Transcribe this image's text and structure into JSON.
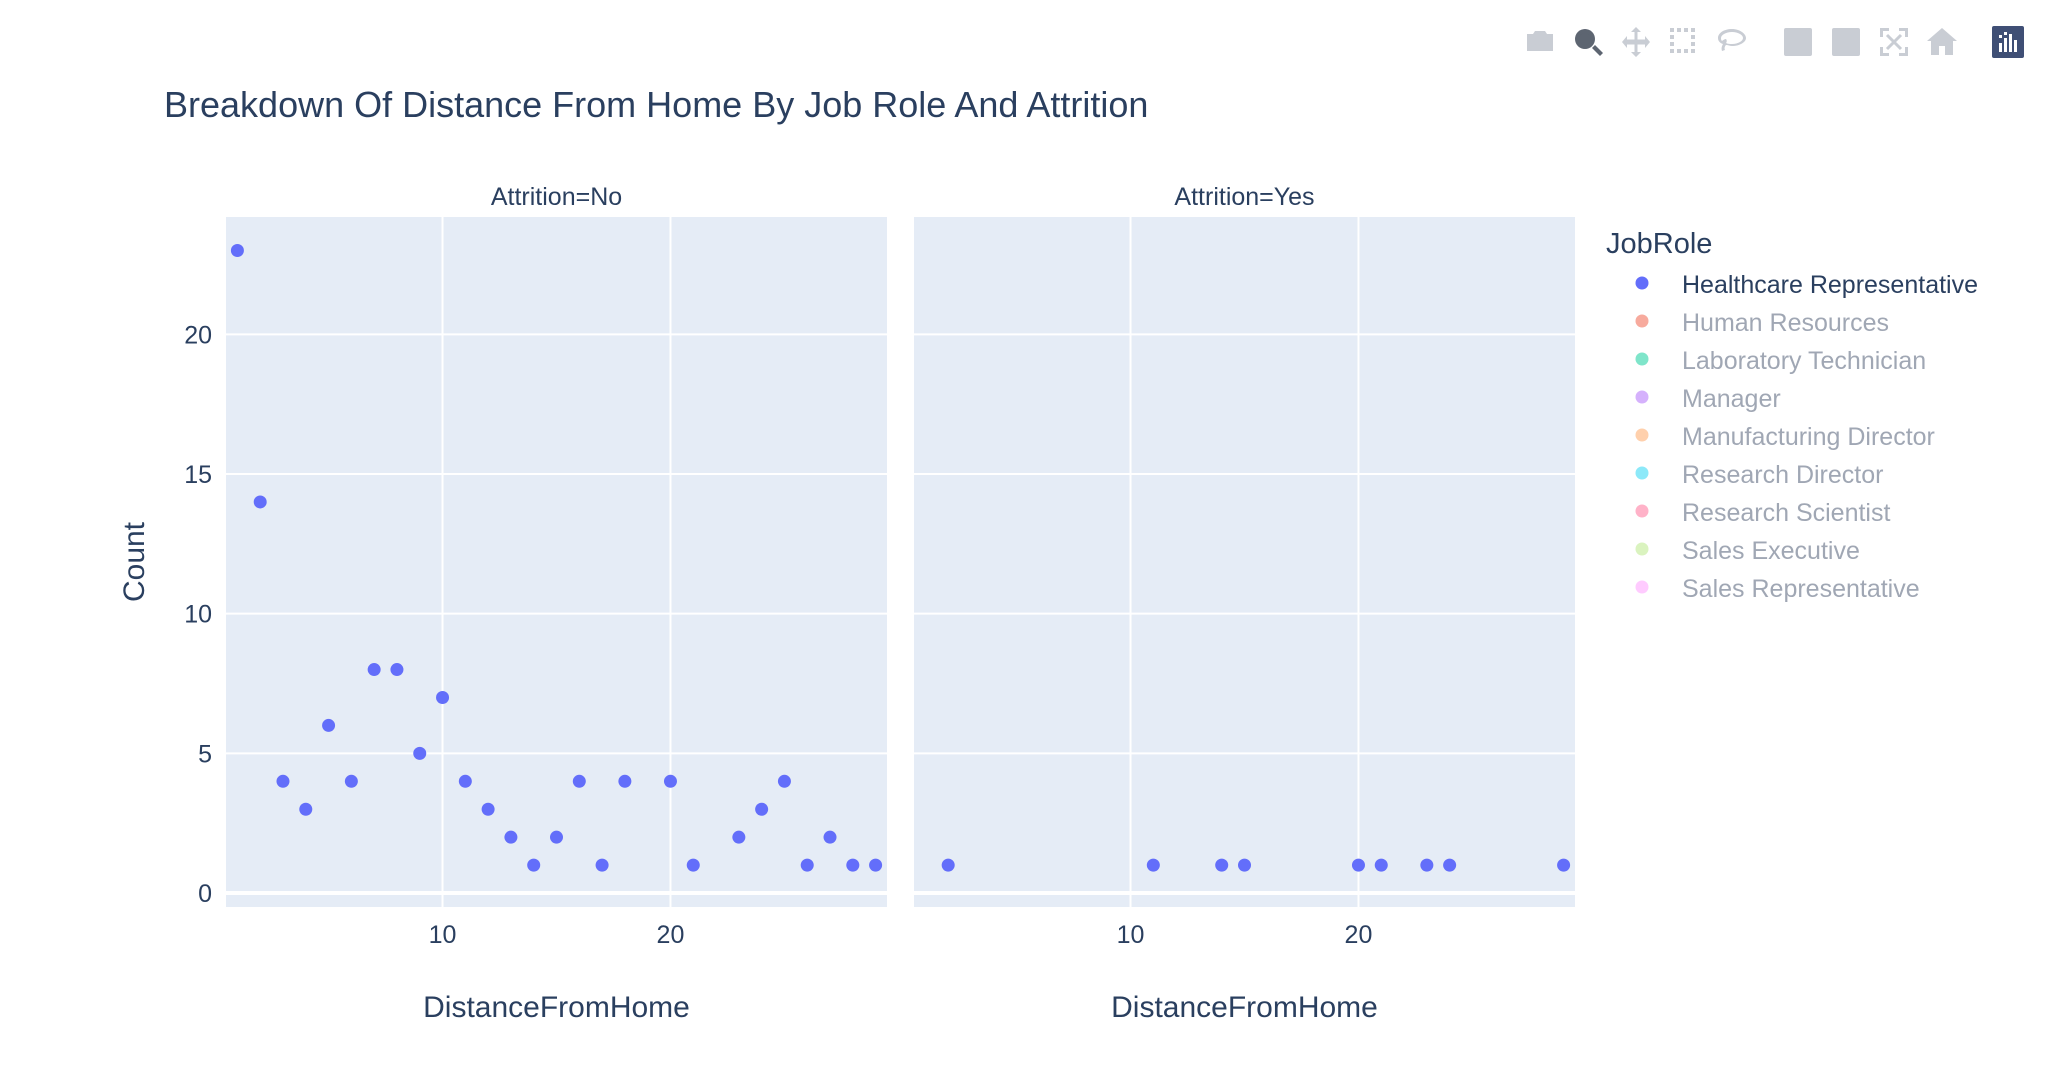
{
  "colors": {
    "plot_bg": "#e5ecf6",
    "grid": "#ffffff",
    "text": "#2a3f5f",
    "tick_text": "#2a3f5f",
    "legend_inactive": "#a0a7b4",
    "marker": "#636efa"
  },
  "toolbar": {
    "buttons": [
      {
        "name": "download-plot-camera-icon",
        "icon": "camera",
        "group": 0,
        "active": false
      },
      {
        "name": "zoom-icon",
        "icon": "zoom",
        "group": 0,
        "active": true
      },
      {
        "name": "pan-icon",
        "icon": "pan",
        "group": 0,
        "active": false
      },
      {
        "name": "box-select-icon",
        "icon": "box-select",
        "group": 0,
        "active": false
      },
      {
        "name": "lasso-select-icon",
        "icon": "lasso",
        "group": 0,
        "active": false
      },
      {
        "name": "zoom-in-icon",
        "icon": "zoom-in",
        "group": 1,
        "active": false
      },
      {
        "name": "zoom-out-icon",
        "icon": "zoom-out",
        "group": 1,
        "active": false
      },
      {
        "name": "autoscale-icon",
        "icon": "autoscale",
        "group": 1,
        "active": false
      },
      {
        "name": "reset-axes-home-icon",
        "icon": "home",
        "group": 1,
        "active": false
      },
      {
        "name": "plotly-logo-icon",
        "icon": "plotly-logo",
        "group": 2,
        "active": false
      }
    ]
  },
  "chart_data": {
    "type": "scatter",
    "title": "Breakdown Of Distance From Home By Job Role And Attrition",
    "ylabel": "Count",
    "ylim": [
      -0.5,
      24.2
    ],
    "y_ticks": [
      0,
      5,
      10,
      15,
      20
    ],
    "x_ticks": [
      10,
      20
    ],
    "grid": true,
    "legend_title": "JobRole",
    "legend_position": "right",
    "legend": [
      {
        "name": "Healthcare Representative",
        "color": "#636efa",
        "active": true
      },
      {
        "name": "Human Resources",
        "color": "#ef553b",
        "active": false
      },
      {
        "name": "Laboratory Technician",
        "color": "#00cc96",
        "active": false
      },
      {
        "name": "Manager",
        "color": "#ab63fa",
        "active": false
      },
      {
        "name": "Manufacturing Director",
        "color": "#ffa15a",
        "active": false
      },
      {
        "name": "Research Director",
        "color": "#19d3f3",
        "active": false
      },
      {
        "name": "Research Scientist",
        "color": "#ff6692",
        "active": false
      },
      {
        "name": "Sales Executive",
        "color": "#b6e880",
        "active": false
      },
      {
        "name": "Sales Representative",
        "color": "#ff97ff",
        "active": false
      }
    ],
    "facets": [
      {
        "title": "Attrition=No",
        "xlabel": "DistanceFromHome",
        "xlim": [
          0.5,
          29.5
        ],
        "series": [
          {
            "name": "Healthcare Representative",
            "x": [
              1,
              2,
              3,
              4,
              5,
              6,
              7,
              8,
              9,
              10,
              11,
              12,
              13,
              14,
              15,
              16,
              17,
              18,
              20,
              21,
              23,
              24,
              25,
              26,
              27,
              28,
              29
            ],
            "y": [
              23,
              14,
              4,
              3,
              6,
              4,
              8,
              8,
              5,
              7,
              4,
              3,
              2,
              1,
              2,
              4,
              1,
              4,
              4,
              1,
              2,
              3,
              4,
              1,
              2,
              1,
              1
            ]
          }
        ]
      },
      {
        "title": "Attrition=Yes",
        "xlabel": "DistanceFromHome",
        "xlim": [
          0.5,
          29.5
        ],
        "series": [
          {
            "name": "Healthcare Representative",
            "x": [
              2,
              11,
              14,
              15,
              20,
              21,
              23,
              24,
              29
            ],
            "y": [
              1,
              1,
              1,
              1,
              1,
              1,
              1,
              1,
              1
            ]
          }
        ]
      }
    ]
  }
}
